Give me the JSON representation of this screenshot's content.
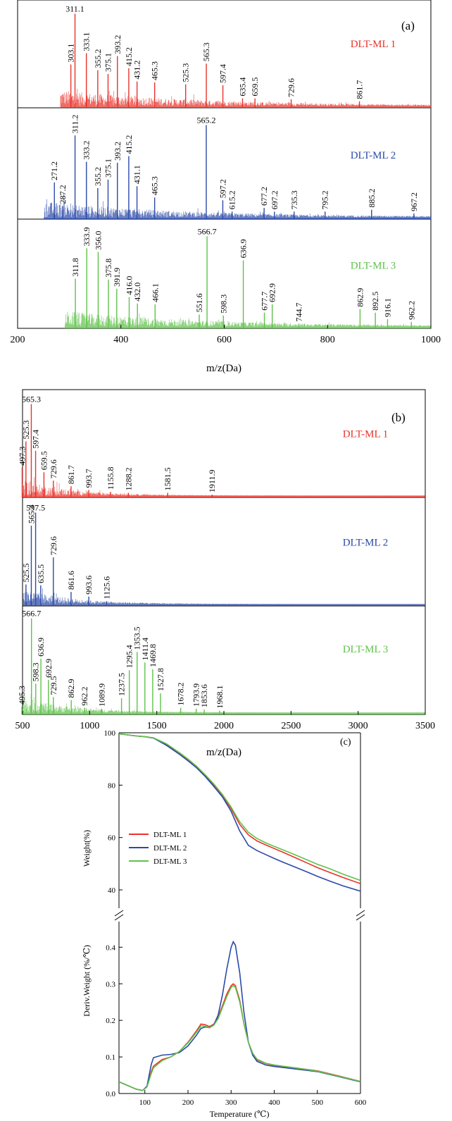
{
  "figure": {
    "panel_a": {
      "label": "(a)",
      "xlabel": "m/z(Da)",
      "xlim": [
        200,
        1000
      ],
      "xticks": [
        200,
        400,
        600,
        800,
        1000
      ]
    },
    "panel_b": {
      "label": "(b)",
      "xlabel": "m/z(Da)",
      "xlim": [
        500,
        3500
      ],
      "xticks": [
        500,
        1000,
        1500,
        2000,
        2500,
        3000,
        3500
      ]
    },
    "panel_c": {
      "label": "(c)",
      "xlabel": "Temperature (℃)",
      "ylabel_top": "Weight(%)",
      "ylabel_bottom": "Deriv.Weight (%/℃)"
    }
  },
  "colors": {
    "DLT-ML 1": "#e8332b",
    "DLT-ML 2": "#2b4aa8",
    "DLT-ML 3": "#5fc24a"
  },
  "chart_data": [
    {
      "type": "bar",
      "panel": "a",
      "xlabel": "m/z(Da)",
      "xlim": [
        200,
        1000
      ],
      "series": [
        {
          "name": "DLT-ML 1",
          "peaks": [
            {
              "mz": 303.1,
              "rel": 0.46
            },
            {
              "mz": 311.1,
              "rel": 1.0
            },
            {
              "mz": 333.1,
              "rel": 0.58
            },
            {
              "mz": 355.2,
              "rel": 0.4
            },
            {
              "mz": 375.1,
              "rel": 0.36
            },
            {
              "mz": 393.2,
              "rel": 0.55
            },
            {
              "mz": 415.2,
              "rel": 0.42
            },
            {
              "mz": 431.2,
              "rel": 0.28
            },
            {
              "mz": 465.3,
              "rel": 0.27
            },
            {
              "mz": 525.3,
              "rel": 0.25
            },
            {
              "mz": 565.3,
              "rel": 0.47
            },
            {
              "mz": 597.4,
              "rel": 0.24
            },
            {
              "mz": 635.4,
              "rel": 0.1
            },
            {
              "mz": 659.5,
              "rel": 0.1
            },
            {
              "mz": 729.6,
              "rel": 0.09
            },
            {
              "mz": 861.7,
              "rel": 0.07
            }
          ]
        },
        {
          "name": "DLT-ML 2",
          "peaks": [
            {
              "mz": 271.2,
              "rel": 0.39
            },
            {
              "mz": 287.2,
              "rel": 0.14
            },
            {
              "mz": 311.2,
              "rel": 0.89
            },
            {
              "mz": 333.2,
              "rel": 0.61
            },
            {
              "mz": 355.2,
              "rel": 0.33
            },
            {
              "mz": 375.1,
              "rel": 0.42
            },
            {
              "mz": 393.2,
              "rel": 0.6
            },
            {
              "mz": 415.2,
              "rel": 0.67
            },
            {
              "mz": 431.1,
              "rel": 0.35
            },
            {
              "mz": 465.3,
              "rel": 0.23
            },
            {
              "mz": 565.2,
              "rel": 1.0
            },
            {
              "mz": 597.2,
              "rel": 0.2
            },
            {
              "mz": 615.2,
              "rel": 0.08
            },
            {
              "mz": 677.2,
              "rel": 0.12
            },
            {
              "mz": 697.2,
              "rel": 0.08
            },
            {
              "mz": 735.3,
              "rel": 0.08
            },
            {
              "mz": 795.2,
              "rel": 0.08
            },
            {
              "mz": 885.2,
              "rel": 0.1
            },
            {
              "mz": 967.2,
              "rel": 0.06
            }
          ]
        },
        {
          "name": "DLT-ML 3",
          "peaks": [
            {
              "mz": 311.8,
              "rel": 0.54
            },
            {
              "mz": 333.9,
              "rel": 0.87
            },
            {
              "mz": 356.0,
              "rel": 0.83
            },
            {
              "mz": 375.8,
              "rel": 0.53
            },
            {
              "mz": 391.9,
              "rel": 0.43
            },
            {
              "mz": 416.0,
              "rel": 0.34
            },
            {
              "mz": 432.0,
              "rel": 0.27
            },
            {
              "mz": 466.1,
              "rel": 0.26
            },
            {
              "mz": 551.6,
              "rel": 0.15
            },
            {
              "mz": 566.7,
              "rel": 1.0
            },
            {
              "mz": 598.3,
              "rel": 0.14
            },
            {
              "mz": 636.9,
              "rel": 0.74
            },
            {
              "mz": 677.7,
              "rel": 0.17
            },
            {
              "mz": 692.9,
              "rel": 0.26
            },
            {
              "mz": 744.7,
              "rel": 0.05
            },
            {
              "mz": 862.9,
              "rel": 0.21
            },
            {
              "mz": 892.5,
              "rel": 0.17
            },
            {
              "mz": 916.1,
              "rel": 0.1
            },
            {
              "mz": 962.2,
              "rel": 0.07
            }
          ]
        }
      ]
    },
    {
      "type": "bar",
      "panel": "b",
      "xlabel": "m/z(Da)",
      "xlim": [
        500,
        3500
      ],
      "series": [
        {
          "name": "DLT-ML 1",
          "peaks": [
            {
              "mz": 497.3,
              "rel": 0.32
            },
            {
              "mz": 525.3,
              "rel": 0.6
            },
            {
              "mz": 565.3,
              "rel": 1.0
            },
            {
              "mz": 597.4,
              "rel": 0.5
            },
            {
              "mz": 659.5,
              "rel": 0.27
            },
            {
              "mz": 729.6,
              "rel": 0.18
            },
            {
              "mz": 861.7,
              "rel": 0.12
            },
            {
              "mz": 993.7,
              "rel": 0.08
            },
            {
              "mz": 1155.8,
              "rel": 0.06
            },
            {
              "mz": 1288.2,
              "rel": 0.05
            },
            {
              "mz": 1581.5,
              "rel": 0.05
            },
            {
              "mz": 1911.9,
              "rel": 0.03
            }
          ]
        },
        {
          "name": "DLT-ML 2",
          "peaks": [
            {
              "mz": 525.5,
              "rel": 0.23
            },
            {
              "mz": 565.4,
              "rel": 0.86
            },
            {
              "mz": 597.5,
              "rel": 1.0
            },
            {
              "mz": 635.5,
              "rel": 0.22
            },
            {
              "mz": 729.6,
              "rel": 0.52
            },
            {
              "mz": 861.6,
              "rel": 0.15
            },
            {
              "mz": 993.6,
              "rel": 0.1
            },
            {
              "mz": 1125.6,
              "rel": 0.05
            }
          ]
        },
        {
          "name": "DLT-ML 3",
          "peaks": [
            {
              "mz": 495.3,
              "rel": 0.08
            },
            {
              "mz": 566.7,
              "rel": 1.0
            },
            {
              "mz": 598.3,
              "rel": 0.32
            },
            {
              "mz": 636.9,
              "rel": 0.58
            },
            {
              "mz": 692.9,
              "rel": 0.36
            },
            {
              "mz": 729.5,
              "rel": 0.18
            },
            {
              "mz": 862.9,
              "rel": 0.15
            },
            {
              "mz": 962.2,
              "rel": 0.07
            },
            {
              "mz": 1089.9,
              "rel": 0.06
            },
            {
              "mz": 1237.5,
              "rel": 0.17
            },
            {
              "mz": 1295.4,
              "rel": 0.46
            },
            {
              "mz": 1353.5,
              "rel": 0.65
            },
            {
              "mz": 1411.4,
              "rel": 0.54
            },
            {
              "mz": 1469.8,
              "rel": 0.47
            },
            {
              "mz": 1527.8,
              "rel": 0.22
            },
            {
              "mz": 1678.2,
              "rel": 0.07
            },
            {
              "mz": 1793.9,
              "rel": 0.06
            },
            {
              "mz": 1853.6,
              "rel": 0.05
            },
            {
              "mz": 1968.1,
              "rel": 0.04
            }
          ]
        }
      ]
    },
    {
      "type": "line",
      "panel": "c-top",
      "xlabel": "",
      "ylabel": "Weight(%)",
      "xlim": [
        40,
        600
      ],
      "ylim": [
        33,
        100
      ],
      "yticks": [
        40,
        60,
        80,
        100
      ],
      "legend_position": "center-left",
      "x": [
        40,
        60,
        80,
        100,
        120,
        150,
        180,
        200,
        220,
        240,
        260,
        280,
        300,
        320,
        340,
        360,
        380,
        400,
        420,
        450,
        480,
        500,
        530,
        560,
        600
      ],
      "series": [
        {
          "name": "DLT-ML 1",
          "values": [
            99.6,
            99.2,
            98.8,
            98.5,
            98.0,
            95.5,
            92.0,
            89.5,
            86.7,
            83.5,
            80.0,
            76.0,
            71.0,
            65.0,
            61.0,
            58.7,
            57.2,
            55.8,
            54.4,
            52.2,
            50.0,
            48.5,
            46.6,
            44.7,
            42.4
          ]
        },
        {
          "name": "DLT-ML 2",
          "values": [
            99.6,
            99.2,
            98.8,
            98.5,
            98.0,
            95.2,
            91.8,
            89.3,
            86.6,
            83.3,
            79.5,
            75.5,
            70.0,
            62.5,
            57.0,
            55.0,
            53.5,
            52.0,
            50.6,
            48.6,
            46.6,
            45.2,
            43.3,
            41.5,
            39.5
          ]
        },
        {
          "name": "DLT-ML 3",
          "values": [
            99.6,
            99.2,
            98.8,
            98.5,
            98.1,
            95.8,
            92.4,
            90.0,
            87.2,
            84.0,
            80.4,
            76.4,
            71.6,
            66.0,
            62.0,
            59.6,
            58.0,
            56.6,
            55.3,
            53.3,
            51.2,
            49.8,
            48.0,
            46.0,
            43.6
          ]
        }
      ]
    },
    {
      "type": "line",
      "panel": "c-bottom",
      "xlabel": "Temperature (℃)",
      "ylabel": "Deriv.Weight (%/℃)",
      "xlim": [
        40,
        600
      ],
      "ylim": [
        0,
        0.47
      ],
      "xticks": [
        100,
        200,
        300,
        400,
        500,
        600
      ],
      "yticks": [
        0.0,
        0.1,
        0.2,
        0.3,
        0.4
      ],
      "x": [
        40,
        60,
        80,
        95,
        105,
        115,
        120,
        140,
        160,
        180,
        200,
        220,
        230,
        240,
        250,
        260,
        270,
        280,
        290,
        300,
        305,
        310,
        320,
        330,
        340,
        350,
        360,
        380,
        400,
        450,
        500,
        550,
        600
      ],
      "series": [
        {
          "name": "DLT-ML 1",
          "values": [
            0.032,
            0.022,
            0.012,
            0.008,
            0.02,
            0.06,
            0.075,
            0.093,
            0.1,
            0.115,
            0.14,
            0.172,
            0.19,
            0.188,
            0.183,
            0.19,
            0.21,
            0.24,
            0.272,
            0.295,
            0.3,
            0.295,
            0.255,
            0.19,
            0.14,
            0.11,
            0.092,
            0.082,
            0.077,
            0.07,
            0.062,
            0.048,
            0.033
          ]
        },
        {
          "name": "DLT-ML 2",
          "values": [
            0.032,
            0.022,
            0.012,
            0.008,
            0.02,
            0.08,
            0.098,
            0.105,
            0.107,
            0.112,
            0.13,
            0.16,
            0.178,
            0.182,
            0.18,
            0.188,
            0.215,
            0.27,
            0.34,
            0.4,
            0.415,
            0.405,
            0.33,
            0.22,
            0.14,
            0.105,
            0.088,
            0.078,
            0.074,
            0.067,
            0.06,
            0.046,
            0.032
          ]
        },
        {
          "name": "DLT-ML 3",
          "values": [
            0.032,
            0.022,
            0.012,
            0.008,
            0.018,
            0.055,
            0.07,
            0.09,
            0.1,
            0.115,
            0.138,
            0.168,
            0.185,
            0.184,
            0.18,
            0.187,
            0.205,
            0.235,
            0.265,
            0.29,
            0.295,
            0.29,
            0.25,
            0.19,
            0.14,
            0.11,
            0.094,
            0.083,
            0.078,
            0.07,
            0.061,
            0.047,
            0.033
          ]
        }
      ]
    }
  ]
}
